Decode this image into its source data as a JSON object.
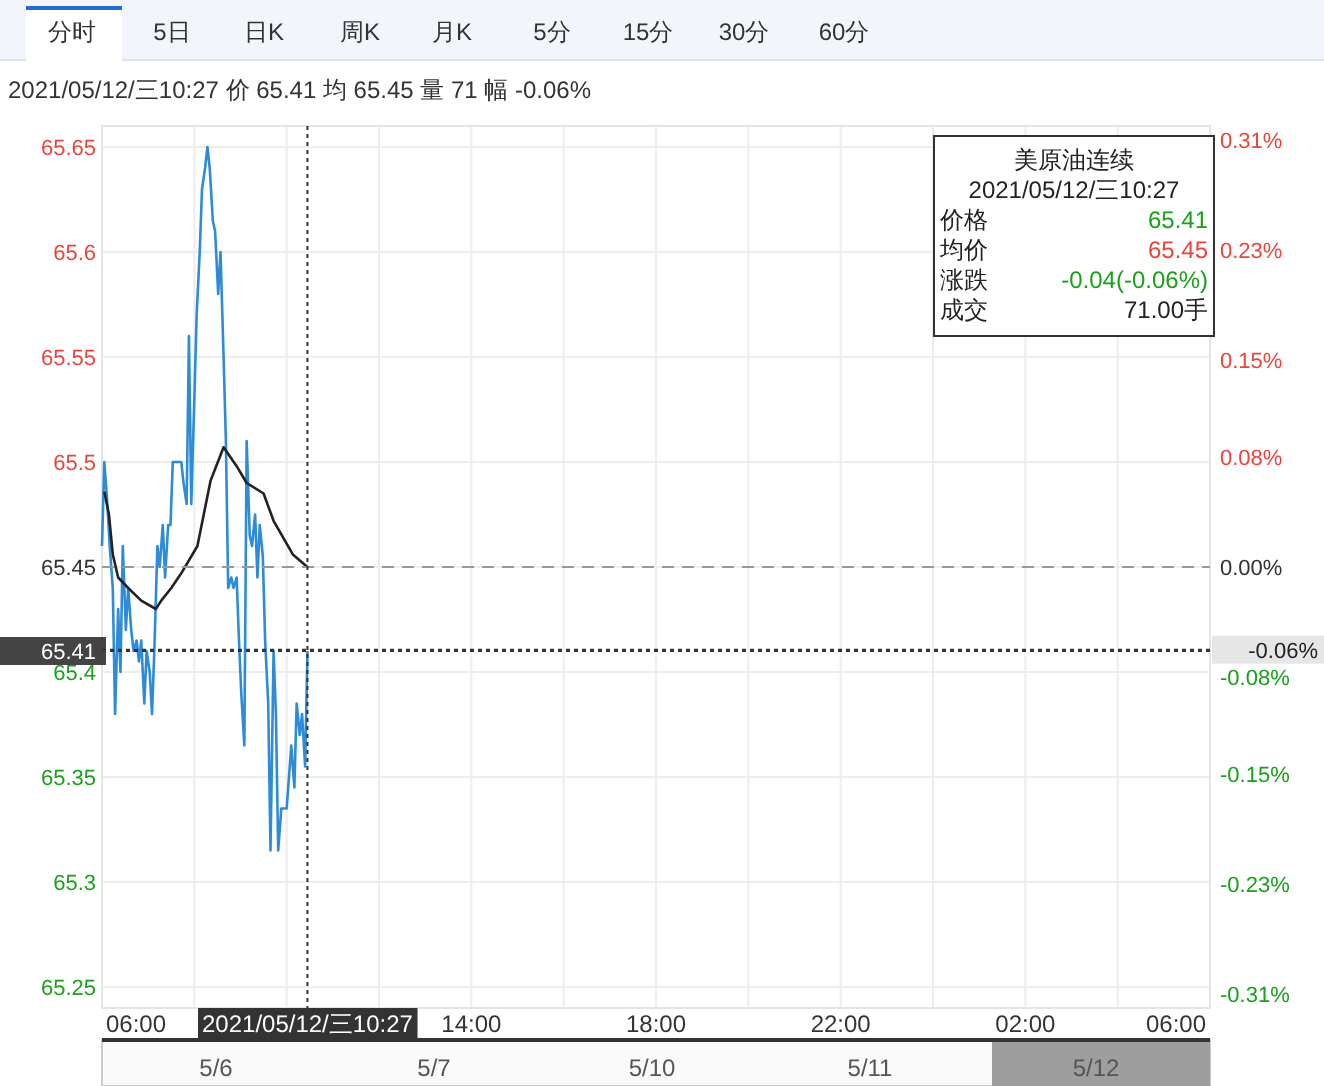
{
  "chart_data": {
    "type": "line",
    "xlim": [
      "2021-05-12T06:00",
      "2021-05-13T06:00"
    ],
    "xticks": [
      {
        "value": "2021-05-12T06:00",
        "label": "06:00"
      },
      {
        "value": "2021-05-12T08:00",
        "label": null
      },
      {
        "value": "2021-05-12T10:00",
        "label": null
      },
      {
        "value": "2021-05-12T12:00",
        "label": null
      },
      {
        "value": "2021-05-12T14:00",
        "label": "14:00"
      },
      {
        "value": "2021-05-12T16:00",
        "label": null
      },
      {
        "value": "2021-05-12T18:00",
        "label": "18:00"
      },
      {
        "value": "2021-05-12T20:00",
        "label": null
      },
      {
        "value": "2021-05-12T22:00",
        "label": "22:00"
      },
      {
        "value": "2021-05-13T00:00",
        "label": null
      },
      {
        "value": "2021-05-13T02:00",
        "label": "02:00"
      },
      {
        "value": "2021-05-13T04:00",
        "label": null
      },
      {
        "value": "2021-05-13T06:00",
        "label": "06:00"
      }
    ],
    "ylim": [
      65.24,
      65.66
    ],
    "yticks": [
      65.25,
      65.3,
      65.35,
      65.4,
      65.45,
      65.5,
      65.55,
      65.6,
      65.65
    ],
    "y2lim": [
      -0.32,
      0.32
    ],
    "y2ticks": [
      {
        "value": -0.31,
        "label": "-0.31%"
      },
      {
        "value": -0.23,
        "label": "-0.23%"
      },
      {
        "value": -0.15,
        "label": "-0.15%"
      },
      {
        "value": -0.08,
        "label": "-0.08%"
      },
      {
        "value": 0,
        "label": "0.00%"
      },
      {
        "value": 0.08,
        "label": "0.08%"
      },
      {
        "value": 0.15,
        "label": "0.15%"
      },
      {
        "value": 0.23,
        "label": "0.23%"
      },
      {
        "value": 0.31,
        "label": "0.31%"
      }
    ],
    "grid": true,
    "line_style": "solid",
    "series": [
      {
        "color": "#2e8bd8",
        "x": [
          "2021-05-12T06:00",
          "2021-05-12T06:03",
          "2021-05-12T06:07",
          "2021-05-12T06:10",
          "2021-05-12T06:14",
          "2021-05-12T06:17",
          "2021-05-12T06:21",
          "2021-05-12T06:24",
          "2021-05-12T06:27",
          "2021-05-12T06:31",
          "2021-05-12T06:34",
          "2021-05-12T06:38",
          "2021-05-12T06:41",
          "2021-05-12T06:45",
          "2021-05-12T06:48",
          "2021-05-12T06:51",
          "2021-05-12T06:55",
          "2021-05-12T06:58",
          "2021-05-12T07:02",
          "2021-05-12T07:05",
          "2021-05-12T07:08",
          "2021-05-12T07:12",
          "2021-05-12T07:15",
          "2021-05-12T07:19",
          "2021-05-12T07:22",
          "2021-05-12T07:26",
          "2021-05-12T07:29",
          "2021-05-12T07:32",
          "2021-05-12T07:36",
          "2021-05-12T07:43",
          "2021-05-12T07:46",
          "2021-05-12T07:50",
          "2021-05-12T07:53",
          "2021-05-12T07:56",
          "2021-05-12T08:00",
          "2021-05-12T08:03",
          "2021-05-12T08:07",
          "2021-05-12T08:10",
          "2021-05-12T08:14",
          "2021-05-12T08:17",
          "2021-05-12T08:20",
          "2021-05-12T08:24",
          "2021-05-12T08:27",
          "2021-05-12T08:31",
          "2021-05-12T08:34",
          "2021-05-12T08:38",
          "2021-05-12T08:41",
          "2021-05-12T08:44",
          "2021-05-12T08:48",
          "2021-05-12T08:51",
          "2021-05-12T08:55",
          "2021-05-12T08:58",
          "2021-05-12T09:01",
          "2021-05-12T09:05",
          "2021-05-12T09:08",
          "2021-05-12T09:12",
          "2021-05-12T09:15",
          "2021-05-12T09:19",
          "2021-05-12T09:22",
          "2021-05-12T09:25",
          "2021-05-12T09:29",
          "2021-05-12T09:32",
          "2021-05-12T09:36",
          "2021-05-12T09:39",
          "2021-05-12T09:43",
          "2021-05-12T09:46",
          "2021-05-12T09:49",
          "2021-05-12T09:53",
          "2021-05-12T09:56",
          "2021-05-12T10:00",
          "2021-05-12T10:03",
          "2021-05-12T10:06",
          "2021-05-12T10:10",
          "2021-05-12T10:13",
          "2021-05-12T10:17",
          "2021-05-12T10:20",
          "2021-05-12T10:24",
          "2021-05-12T10:27"
        ],
        "values": [
          65.46,
          65.5,
          65.48,
          65.46,
          65.44,
          65.38,
          65.43,
          65.4,
          65.46,
          65.42,
          65.44,
          65.42,
          65.41,
          65.415,
          65.405,
          65.415,
          65.385,
          65.41,
          65.4,
          65.38,
          65.41,
          65.46,
          65.45,
          65.47,
          65.445,
          65.47,
          65.47,
          65.5,
          65.5,
          65.5,
          65.49,
          65.48,
          65.56,
          65.48,
          65.53,
          65.57,
          65.6,
          65.63,
          65.64,
          65.65,
          65.64,
          65.615,
          65.61,
          65.58,
          65.6,
          65.55,
          65.51,
          65.44,
          65.445,
          65.44,
          65.445,
          65.415,
          65.39,
          65.365,
          65.51,
          65.465,
          65.46,
          65.475,
          65.445,
          65.47,
          65.455,
          65.415,
          65.385,
          65.315,
          65.41,
          65.38,
          65.315,
          65.335,
          65.335,
          65.335,
          65.35,
          65.365,
          65.345,
          65.385,
          65.37,
          65.38,
          65.355,
          65.41
        ]
      },
      {
        "color": "#222222",
        "x": [
          "2021-05-12T06:03",
          "2021-05-12T06:09",
          "2021-05-12T06:14",
          "2021-05-12T06:21",
          "2021-05-12T06:34",
          "2021-05-12T06:51",
          "2021-05-12T07:10",
          "2021-05-12T07:17",
          "2021-05-12T07:30",
          "2021-05-12T07:43",
          "2021-05-12T08:04",
          "2021-05-12T08:21",
          "2021-05-12T08:38",
          "2021-05-12T08:55",
          "2021-05-12T09:08",
          "2021-05-12T09:30",
          "2021-05-12T09:43",
          "2021-05-12T10:08",
          "2021-05-12T10:27"
        ],
        "values": [
          65.486,
          65.475,
          65.456,
          65.445,
          65.44,
          65.434,
          65.43,
          65.434,
          65.44,
          65.447,
          65.46,
          65.491,
          65.507,
          65.498,
          65.49,
          65.485,
          65.472,
          65.456,
          65.45
        ]
      }
    ],
    "ref_lines": [
      {
        "axis": "y",
        "value": 65.45,
        "line_style": "dashed",
        "color": "#999999"
      },
      {
        "axis": "y",
        "value": 65.41,
        "label": "65.41",
        "line_style": "dotted",
        "color": "#333333"
      },
      {
        "axis": "y2",
        "value": -0.06,
        "label": "-0.06%",
        "line_style": "dotted",
        "color": "#333333"
      },
      {
        "axis": "x",
        "value": "2021-05-12T10:27",
        "label": "2021/05/12/三10:27",
        "line_style": "dotted",
        "color": "#333333"
      }
    ],
    "annotations": [
      "分时",
      "5日",
      "日K",
      "周K",
      "月K",
      "5分",
      "15分",
      "30分",
      "60分",
      "2021/05/12/三10:27  价 65.41  均 65.45  量 71  幅 -0.06%",
      "美原油连续",
      "2021/05/12/三10:27",
      "价格",
      "65.41",
      "均价",
      "65.45",
      "涨跌",
      "-0.04(-0.06%)",
      "成交",
      "71.00手",
      "5/6",
      "5/7",
      "5/10",
      "5/11",
      "5/12"
    ]
  }
}
